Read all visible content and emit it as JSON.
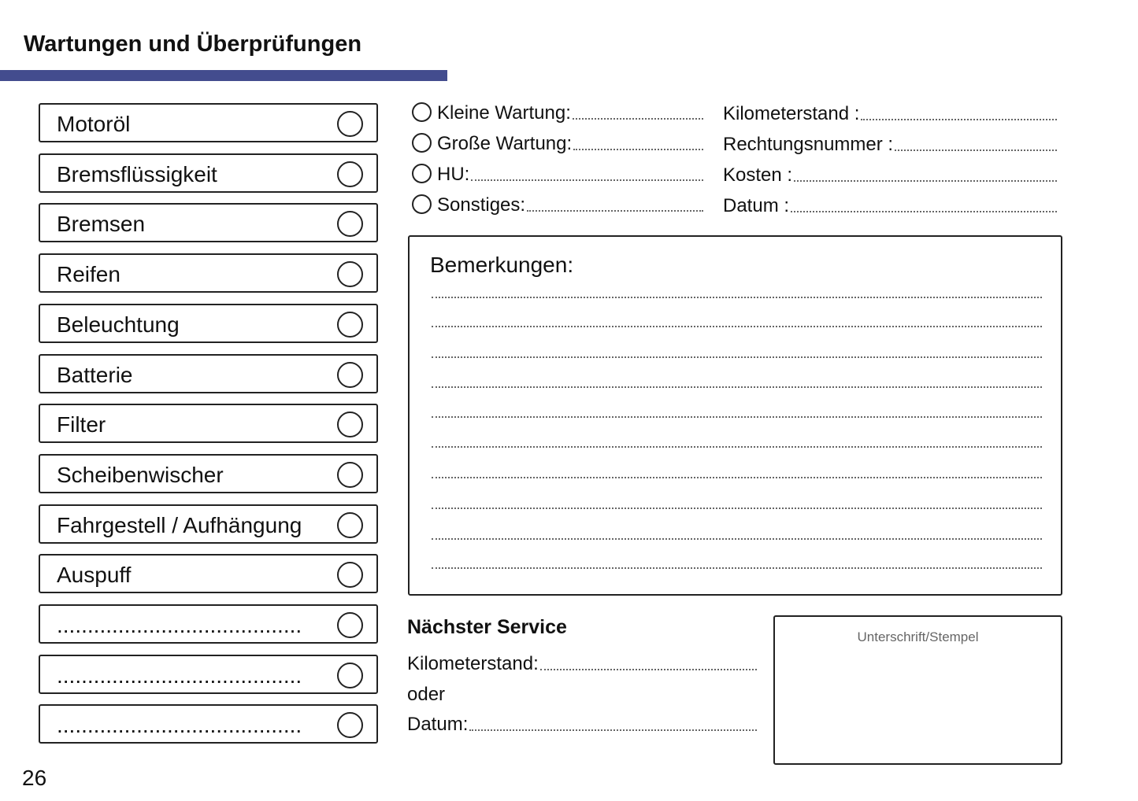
{
  "header": {
    "title": "Wartungen und Überprüfungen",
    "accent_color": "#434c8e"
  },
  "checklist": [
    {
      "label": "Motoröl"
    },
    {
      "label": "Bremsflüssigkeit"
    },
    {
      "label": "Bremsen"
    },
    {
      "label": "Reifen"
    },
    {
      "label": "Beleuchtung"
    },
    {
      "label": "Batterie"
    },
    {
      "label": "Filter"
    },
    {
      "label": "Scheibenwischer"
    },
    {
      "label": "Fahrgestell / Aufhängung"
    },
    {
      "label": "Auspuff"
    },
    {
      "label": "........................................"
    },
    {
      "label": "........................................"
    },
    {
      "label": "........................................"
    }
  ],
  "service_type": [
    {
      "label": "Kleine Wartung:"
    },
    {
      "label": "Große Wartung:"
    },
    {
      "label": "HU:"
    },
    {
      "label": "Sonstiges:"
    }
  ],
  "details": [
    {
      "label": "Kilometerstand :"
    },
    {
      "label": "Rechtungsnummer :"
    },
    {
      "label": "Kosten :"
    },
    {
      "label": "Datum :"
    }
  ],
  "notes": {
    "title": "Bemerkungen:"
  },
  "next_service": {
    "title": "Nächster Service",
    "mileage_label": "Kilometerstand:",
    "or_label": "oder",
    "date_label": "Datum:"
  },
  "signature": {
    "label": "Unterschrift/Stempel"
  },
  "page_number": "26"
}
